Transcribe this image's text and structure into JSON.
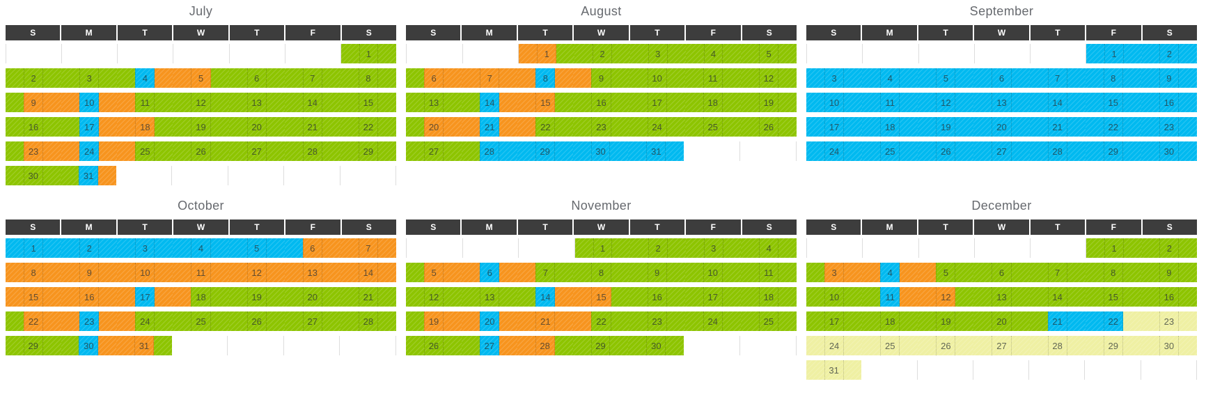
{
  "weekday_headers": [
    "S",
    "M",
    "T",
    "W",
    "T",
    "F",
    "S"
  ],
  "colors": {
    "green": "#8dc400",
    "orange": "#f7941e",
    "blue": "#00b9f0",
    "yellow": "#eff0a3",
    "header_bg": "#3d3d3d",
    "header_text": "#ffffff",
    "title_text": "#66696e"
  },
  "color_codes": {
    "g": "green",
    "o": "orange",
    "b": "blue",
    "y": "yellow"
  },
  "months": [
    {
      "name": "July",
      "weeks": [
        [
          null,
          null,
          null,
          null,
          null,
          null,
          {
            "d": 1,
            "c": "ggg"
          }
        ],
        [
          {
            "d": 2,
            "c": "ggg"
          },
          {
            "d": 3,
            "c": "ggg"
          },
          {
            "d": 4,
            "c": "gbo"
          },
          {
            "d": 5,
            "c": "oog"
          },
          {
            "d": 6,
            "c": "ggg"
          },
          {
            "d": 7,
            "c": "ggg"
          },
          {
            "d": 8,
            "c": "ggg"
          }
        ],
        [
          {
            "d": 9,
            "c": "goo"
          },
          {
            "d": 10,
            "c": "obo"
          },
          {
            "d": 11,
            "c": "ogg"
          },
          {
            "d": 12,
            "c": "ggg"
          },
          {
            "d": 13,
            "c": "ggg"
          },
          {
            "d": 14,
            "c": "ggg"
          },
          {
            "d": 15,
            "c": "ggg"
          }
        ],
        [
          {
            "d": 16,
            "c": "ggg"
          },
          {
            "d": 17,
            "c": "gbo"
          },
          {
            "d": 18,
            "c": "oog"
          },
          {
            "d": 19,
            "c": "ggg"
          },
          {
            "d": 20,
            "c": "ggg"
          },
          {
            "d": 21,
            "c": "ggg"
          },
          {
            "d": 22,
            "c": "ggg"
          }
        ],
        [
          {
            "d": 23,
            "c": "goo"
          },
          {
            "d": 24,
            "c": "obo"
          },
          {
            "d": 25,
            "c": "ogg"
          },
          {
            "d": 26,
            "c": "ggg"
          },
          {
            "d": 27,
            "c": "ggg"
          },
          {
            "d": 28,
            "c": "ggg"
          },
          {
            "d": 29,
            "c": "ggg"
          }
        ],
        [
          {
            "d": 30,
            "c": "ggg"
          },
          {
            "d": 31,
            "c": "gbo"
          },
          null,
          null,
          null,
          null,
          null
        ]
      ]
    },
    {
      "name": "August",
      "weeks": [
        [
          null,
          null,
          {
            "d": 1,
            "c": "oog"
          },
          {
            "d": 2,
            "c": "ggg"
          },
          {
            "d": 3,
            "c": "ggg"
          },
          {
            "d": 4,
            "c": "ggg"
          },
          {
            "d": 5,
            "c": "ggg"
          }
        ],
        [
          {
            "d": 6,
            "c": "goo"
          },
          {
            "d": 7,
            "c": "ooo"
          },
          {
            "d": 8,
            "c": "obo"
          },
          {
            "d": 9,
            "c": "ogg"
          },
          {
            "d": 10,
            "c": "ggg"
          },
          {
            "d": 11,
            "c": "ggg"
          },
          {
            "d": 12,
            "c": "ggg"
          }
        ],
        [
          {
            "d": 13,
            "c": "ggg"
          },
          {
            "d": 14,
            "c": "gbo"
          },
          {
            "d": 15,
            "c": "oog"
          },
          {
            "d": 16,
            "c": "ggg"
          },
          {
            "d": 17,
            "c": "ggg"
          },
          {
            "d": 18,
            "c": "ggg"
          },
          {
            "d": 19,
            "c": "ggg"
          }
        ],
        [
          {
            "d": 20,
            "c": "goo"
          },
          {
            "d": 21,
            "c": "obo"
          },
          {
            "d": 22,
            "c": "ogg"
          },
          {
            "d": 23,
            "c": "ggg"
          },
          {
            "d": 24,
            "c": "ggg"
          },
          {
            "d": 25,
            "c": "ggg"
          },
          {
            "d": 26,
            "c": "ggg"
          }
        ],
        [
          {
            "d": 27,
            "c": "ggg"
          },
          {
            "d": 28,
            "c": "gbb"
          },
          {
            "d": 29,
            "c": "bbb"
          },
          {
            "d": 30,
            "c": "bbb"
          },
          {
            "d": 31,
            "c": "bbb"
          },
          null,
          null
        ]
      ]
    },
    {
      "name": "September",
      "weeks": [
        [
          null,
          null,
          null,
          null,
          null,
          {
            "d": 1,
            "c": "bbb"
          },
          {
            "d": 2,
            "c": "bbb"
          }
        ],
        [
          {
            "d": 3,
            "c": "bbb"
          },
          {
            "d": 4,
            "c": "bbb"
          },
          {
            "d": 5,
            "c": "bbb"
          },
          {
            "d": 6,
            "c": "bbb"
          },
          {
            "d": 7,
            "c": "bbb"
          },
          {
            "d": 8,
            "c": "bbb"
          },
          {
            "d": 9,
            "c": "bbb"
          }
        ],
        [
          {
            "d": 10,
            "c": "bbb"
          },
          {
            "d": 11,
            "c": "bbb"
          },
          {
            "d": 12,
            "c": "bbb"
          },
          {
            "d": 13,
            "c": "bbb"
          },
          {
            "d": 14,
            "c": "bbb"
          },
          {
            "d": 15,
            "c": "bbb"
          },
          {
            "d": 16,
            "c": "bbb"
          }
        ],
        [
          {
            "d": 17,
            "c": "bbb"
          },
          {
            "d": 18,
            "c": "bbb"
          },
          {
            "d": 19,
            "c": "bbb"
          },
          {
            "d": 20,
            "c": "bbb"
          },
          {
            "d": 21,
            "c": "bbb"
          },
          {
            "d": 22,
            "c": "bbb"
          },
          {
            "d": 23,
            "c": "bbb"
          }
        ],
        [
          {
            "d": 24,
            "c": "bbb"
          },
          {
            "d": 25,
            "c": "bbb"
          },
          {
            "d": 26,
            "c": "bbb"
          },
          {
            "d": 27,
            "c": "bbb"
          },
          {
            "d": 28,
            "c": "bbb"
          },
          {
            "d": 29,
            "c": "bbb"
          },
          {
            "d": 30,
            "c": "bbb"
          }
        ]
      ]
    },
    {
      "name": "October",
      "weeks": [
        [
          {
            "d": 1,
            "c": "bbb"
          },
          {
            "d": 2,
            "c": "bbb"
          },
          {
            "d": 3,
            "c": "bbb"
          },
          {
            "d": 4,
            "c": "bbb"
          },
          {
            "d": 5,
            "c": "bbb"
          },
          {
            "d": 6,
            "c": "boo"
          },
          {
            "d": 7,
            "c": "ooo"
          }
        ],
        [
          {
            "d": 8,
            "c": "ooo"
          },
          {
            "d": 9,
            "c": "ooo"
          },
          {
            "d": 10,
            "c": "ooo"
          },
          {
            "d": 11,
            "c": "ooo"
          },
          {
            "d": 12,
            "c": "ooo"
          },
          {
            "d": 13,
            "c": "ooo"
          },
          {
            "d": 14,
            "c": "ooo"
          }
        ],
        [
          {
            "d": 15,
            "c": "ooo"
          },
          {
            "d": 16,
            "c": "ooo"
          },
          {
            "d": 17,
            "c": "obo"
          },
          {
            "d": 18,
            "c": "ogg"
          },
          {
            "d": 19,
            "c": "ggg"
          },
          {
            "d": 20,
            "c": "ggg"
          },
          {
            "d": 21,
            "c": "ggg"
          }
        ],
        [
          {
            "d": 22,
            "c": "goo"
          },
          {
            "d": 23,
            "c": "obo"
          },
          {
            "d": 24,
            "c": "ogg"
          },
          {
            "d": 25,
            "c": "ggg"
          },
          {
            "d": 26,
            "c": "ggg"
          },
          {
            "d": 27,
            "c": "ggg"
          },
          {
            "d": 28,
            "c": "ggg"
          }
        ],
        [
          {
            "d": 29,
            "c": "ggg"
          },
          {
            "d": 30,
            "c": "gbo"
          },
          {
            "d": 31,
            "c": "oog"
          },
          null,
          null,
          null,
          null
        ]
      ]
    },
    {
      "name": "November",
      "weeks": [
        [
          null,
          null,
          null,
          {
            "d": 1,
            "c": "ggg"
          },
          {
            "d": 2,
            "c": "ggg"
          },
          {
            "d": 3,
            "c": "ggg"
          },
          {
            "d": 4,
            "c": "ggg"
          }
        ],
        [
          {
            "d": 5,
            "c": "goo"
          },
          {
            "d": 6,
            "c": "obo"
          },
          {
            "d": 7,
            "c": "ogg"
          },
          {
            "d": 8,
            "c": "ggg"
          },
          {
            "d": 9,
            "c": "ggg"
          },
          {
            "d": 10,
            "c": "ggg"
          },
          {
            "d": 11,
            "c": "ggg"
          }
        ],
        [
          {
            "d": 12,
            "c": "ggg"
          },
          {
            "d": 13,
            "c": "ggg"
          },
          {
            "d": 14,
            "c": "gbo"
          },
          {
            "d": 15,
            "c": "oog"
          },
          {
            "d": 16,
            "c": "ggg"
          },
          {
            "d": 17,
            "c": "ggg"
          },
          {
            "d": 18,
            "c": "ggg"
          }
        ],
        [
          {
            "d": 19,
            "c": "goo"
          },
          {
            "d": 20,
            "c": "obo"
          },
          {
            "d": 21,
            "c": "ooo"
          },
          {
            "d": 22,
            "c": "ogg"
          },
          {
            "d": 23,
            "c": "ggg"
          },
          {
            "d": 24,
            "c": "ggg"
          },
          {
            "d": 25,
            "c": "ggg"
          }
        ],
        [
          {
            "d": 26,
            "c": "ggg"
          },
          {
            "d": 27,
            "c": "gbo"
          },
          {
            "d": 28,
            "c": "oog"
          },
          {
            "d": 29,
            "c": "ggg"
          },
          {
            "d": 30,
            "c": "ggg"
          },
          null,
          null
        ]
      ]
    },
    {
      "name": "December",
      "weeks": [
        [
          null,
          null,
          null,
          null,
          null,
          {
            "d": 1,
            "c": "ggg"
          },
          {
            "d": 2,
            "c": "ggg"
          }
        ],
        [
          {
            "d": 3,
            "c": "goo"
          },
          {
            "d": 4,
            "c": "obo"
          },
          {
            "d": 5,
            "c": "ogg"
          },
          {
            "d": 6,
            "c": "ggg"
          },
          {
            "d": 7,
            "c": "ggg"
          },
          {
            "d": 8,
            "c": "ggg"
          },
          {
            "d": 9,
            "c": "ggg"
          }
        ],
        [
          {
            "d": 10,
            "c": "ggg"
          },
          {
            "d": 11,
            "c": "gbo"
          },
          {
            "d": 12,
            "c": "oog"
          },
          {
            "d": 13,
            "c": "ggg"
          },
          {
            "d": 14,
            "c": "ggg"
          },
          {
            "d": 15,
            "c": "ggg"
          },
          {
            "d": 16,
            "c": "ggg"
          }
        ],
        [
          {
            "d": 17,
            "c": "ggg"
          },
          {
            "d": 18,
            "c": "ggg"
          },
          {
            "d": 19,
            "c": "ggg"
          },
          {
            "d": 20,
            "c": "ggg"
          },
          {
            "d": 21,
            "c": "gbb"
          },
          {
            "d": 22,
            "c": "bby"
          },
          {
            "d": 23,
            "c": "yyy"
          }
        ],
        [
          {
            "d": 24,
            "c": "yyy"
          },
          {
            "d": 25,
            "c": "yyy"
          },
          {
            "d": 26,
            "c": "yyy"
          },
          {
            "d": 27,
            "c": "yyy"
          },
          {
            "d": 28,
            "c": "yyy"
          },
          {
            "d": 29,
            "c": "yyy"
          },
          {
            "d": 30,
            "c": "yyy"
          }
        ],
        [
          {
            "d": 31,
            "c": "yyy"
          },
          null,
          null,
          null,
          null,
          null,
          null
        ]
      ]
    }
  ]
}
